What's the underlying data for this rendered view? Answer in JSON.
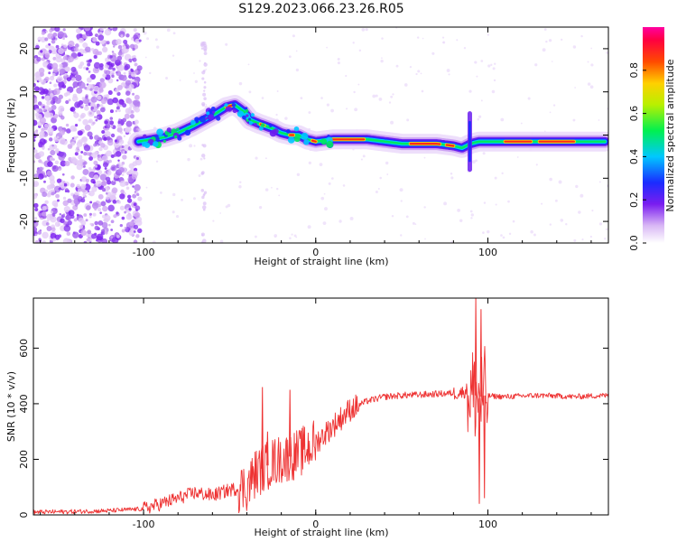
{
  "title": "S129.2023.066.23.26.R05",
  "chart_data": [
    {
      "type": "heatmap",
      "title": "",
      "xlabel": "Height of straight line (km)",
      "ylabel": "Frequency (Hz)",
      "xlim": [
        -164,
        170
      ],
      "ylim": [
        -25,
        25
      ],
      "xticks": [
        "-100",
        "0",
        "100"
      ],
      "yticks": [
        "-20",
        "-10",
        "0",
        "10",
        "20"
      ],
      "colorbar": {
        "label": "Normalized spectral amplitude",
        "range": [
          0,
          1
        ],
        "ticks": [
          "0.0",
          "0.2",
          "0.4",
          "0.6",
          "0.8"
        ],
        "colormap": "rainbow (violet-blue-cyan-green-yellow-orange-red-magenta)"
      },
      "ridge": {
        "x": [
          -103,
          -95,
          -88,
          -80,
          -72,
          -65,
          -58,
          -52,
          -47,
          -42,
          -38,
          -32,
          -25,
          -20,
          -15,
          -10,
          -5,
          0,
          10,
          20,
          30,
          40,
          50,
          60,
          70,
          80,
          85,
          90,
          95,
          100,
          110,
          120,
          130,
          140,
          150,
          160,
          168
        ],
        "y": [
          -1.5,
          -1,
          -0.5,
          0.5,
          2,
          3.5,
          5,
          6.5,
          7,
          5.5,
          3.5,
          2.5,
          1.5,
          0.5,
          0,
          0,
          -1,
          -1.5,
          -1,
          -1,
          -1,
          -1.5,
          -2,
          -2,
          -2,
          -2.5,
          -3,
          -2,
          -1.5,
          -1.5,
          -1.5,
          -1.5,
          -1.5,
          -1.5,
          -1.5,
          -1.5,
          -1.5
        ]
      }
    },
    {
      "type": "line",
      "title": "",
      "xlabel": "Height of straight line (km)",
      "ylabel": "SNR (10 * v/v)",
      "xlim": [
        -164,
        170
      ],
      "ylim": [
        0,
        780
      ],
      "xticks": [
        "-100",
        "0",
        "100"
      ],
      "yticks": [
        "0",
        "200",
        "400",
        "600"
      ],
      "color": "#ee3333",
      "series": [
        {
          "x": [
            -164,
            -140,
            -120,
            -100,
            -90,
            -80,
            -70,
            -60,
            -50,
            -40,
            -35,
            -30,
            -25,
            -20,
            -15,
            -10,
            -5,
            0,
            5,
            10,
            15,
            20,
            25,
            30,
            40,
            50,
            60,
            70,
            80,
            85,
            88,
            90,
            93,
            95,
            97,
            100,
            110,
            120,
            130,
            140,
            150,
            160,
            170
          ],
          "y": [
            10,
            12,
            15,
            22,
            40,
            60,
            80,
            70,
            90,
            100,
            150,
            170,
            190,
            200,
            210,
            220,
            240,
            260,
            290,
            320,
            350,
            380,
            395,
            410,
            425,
            430,
            432,
            435,
            438,
            440,
            450,
            440,
            430,
            420,
            430,
            428,
            425,
            428,
            430,
            428,
            425,
            428,
            430
          ]
        }
      ],
      "spikes": [
        {
          "x": -31,
          "y": 460
        },
        {
          "x": -28,
          "y": 300
        },
        {
          "x": -15,
          "y": 450
        },
        {
          "x": 93,
          "y": 780
        },
        {
          "x": 95,
          "y": 40
        },
        {
          "x": 96,
          "y": 740
        },
        {
          "x": 98,
          "y": 60
        }
      ]
    }
  ]
}
